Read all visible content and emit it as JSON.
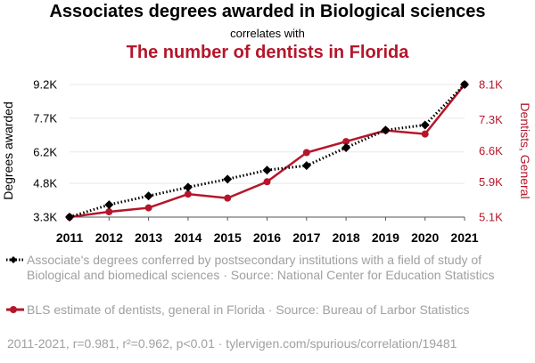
{
  "header": {
    "title": "Associates degrees awarded in Biological sciences",
    "subtitle": "correlates with",
    "title2": "The number of dentists in Florida"
  },
  "colors": {
    "series1": "#000000",
    "series2": "#b5162b",
    "grid": "#e8e8e8",
    "muted": "#a0a0a0"
  },
  "chart_data": {
    "type": "line",
    "x": [
      2011,
      2012,
      2013,
      2014,
      2015,
      2016,
      2017,
      2018,
      2019,
      2020,
      2021
    ],
    "xlabel": "",
    "y_left": {
      "label": "Degrees awarded",
      "ticks": [
        3300,
        4800,
        6200,
        7700,
        9200
      ],
      "tick_labels": [
        "3.3K",
        "4.8K",
        "6.2K",
        "7.7K",
        "9.2K"
      ],
      "lim": [
        3300,
        9200
      ]
    },
    "y_right": {
      "label": "Dentists, General",
      "ticks": [
        5100,
        5900,
        6600,
        7300,
        8100
      ],
      "tick_labels": [
        "5.1K",
        "5.9K",
        "6.6K",
        "7.3K",
        "8.1K"
      ],
      "lim": [
        5100,
        8100
      ]
    },
    "series": [
      {
        "axis": "left",
        "marker": "diamond",
        "line": "dotted",
        "color": "#000000",
        "values": [
          3300,
          3850,
          4240,
          4630,
          4990,
          5390,
          5590,
          6390,
          7170,
          7400,
          9200
        ]
      },
      {
        "axis": "right",
        "marker": "circle",
        "line": "solid",
        "color": "#b5162b",
        "values": [
          5100,
          5220,
          5310,
          5620,
          5530,
          5900,
          6560,
          6810,
          7060,
          6980,
          8100
        ]
      }
    ],
    "grid": true,
    "legend_position": "bottom"
  },
  "legend": {
    "series1": "Associate's degrees conferred by postsecondary institutions with a field of study of Biological and biomedical sciences · Source: National Center for Education Statistics",
    "series2": "BLS estimate of dentists, general in Florida · Source: Bureau of Larbor Statistics"
  },
  "footer": "2011-2021, r=0.981, r²=0.962, p<0.01 · tylervigen.com/spurious/correlation/19481"
}
